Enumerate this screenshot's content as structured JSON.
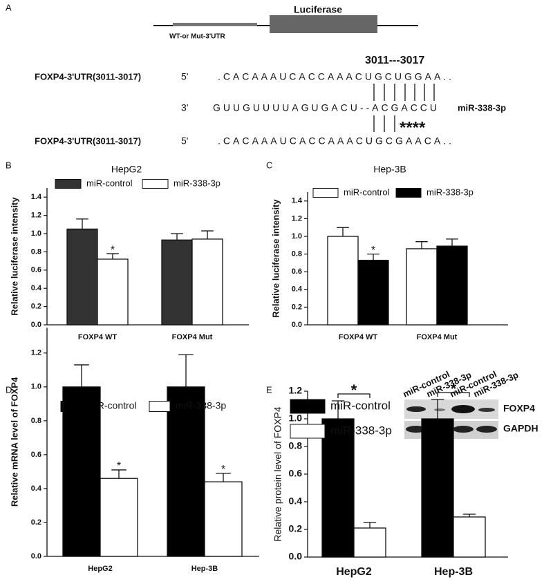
{
  "panel_a": {
    "label": "A",
    "luciferase": "Luciferase",
    "utr_label": "WT-or Mut-3'UTR",
    "site": "3011---3017",
    "rows": [
      {
        "name": "FOXP4-3'UTR(3011-3017)",
        "end": "5'",
        "sequence": ".CACAAAUCACCAAACUGCUGGAA.."
      },
      {
        "end": "3'",
        "sequence": "GUUGUUUUAGUGACU--ACGACCU",
        "name": "miR-338-3p"
      },
      {
        "name": "FOXP4-3'UTR(3011-3017)",
        "end": "5'",
        "sequence": ".CACAAAUCACCAAACUGCGAACA.."
      }
    ],
    "mismatch": "****"
  },
  "chart_data": [
    {
      "type": "bar",
      "panel": "B",
      "title": "HepG2",
      "ylabel": "Relative luciferase intensity",
      "categories": [
        "FOXP4 WT",
        "FOXP4 Mut"
      ],
      "series": [
        {
          "name": "miR-control",
          "color": "#333333",
          "values": [
            1.05,
            0.93
          ],
          "errors": [
            0.11,
            0.07
          ]
        },
        {
          "name": "miR-338-3p",
          "color": "#ffffff",
          "values": [
            0.72,
            0.94
          ],
          "errors": [
            0.06,
            0.09
          ],
          "annotations": [
            "*",
            null
          ]
        }
      ],
      "ylim": [
        0,
        1.5
      ],
      "yticks": [
        {
          "value": 0,
          "label": "0.0"
        },
        0.2,
        0.4,
        0.6,
        0.8,
        {
          "value": 1,
          "label": "1.0"
        },
        1.2,
        1.4
      ]
    },
    {
      "type": "bar",
      "panel": "C",
      "title": "Hep-3B",
      "ylabel": "Relative luciferase intensity",
      "categories": [
        "FOXP4 WT",
        "FOXP4 Mut"
      ],
      "series": [
        {
          "name": "miR-control",
          "color": "#ffffff",
          "values": [
            1.0,
            0.86
          ],
          "errors": [
            0.1,
            0.08
          ]
        },
        {
          "name": "miR-338-3p",
          "color": "#000000",
          "values": [
            0.73,
            0.89
          ],
          "errors": [
            0.07,
            0.08
          ],
          "annotations": [
            "*",
            null
          ]
        }
      ],
      "ylim": [
        0,
        1.5
      ],
      "yticks": [
        {
          "value": 0,
          "label": "0.0"
        },
        0.2,
        0.4,
        0.6,
        0.8,
        {
          "value": 1,
          "label": "1.0"
        },
        1.2,
        1.4
      ]
    },
    {
      "type": "bar",
      "panel": "D",
      "ylabel": "Relative mRNA level of FOXP4",
      "categories": [
        "HepG2",
        "Hep-3B"
      ],
      "series": [
        {
          "name": "miR-control",
          "color": "#000000",
          "values": [
            1.0,
            1.0
          ],
          "errors": [
            0.13,
            0.19
          ]
        },
        {
          "name": "miR-338-3p",
          "color": "#ffffff",
          "values": [
            0.46,
            0.44
          ],
          "errors": [
            0.05,
            0.05
          ],
          "annotations": [
            "*",
            "*"
          ]
        }
      ],
      "ylim": [
        0,
        1.35
      ],
      "yticks": [
        {
          "value": 0,
          "label": "0.0"
        },
        0.2,
        0.4,
        0.6,
        0.8,
        {
          "value": 1,
          "label": "1.0"
        },
        1.2
      ]
    },
    {
      "type": "bar",
      "panel": "E",
      "ylabel": "Relative protein level of FOXP4",
      "categories": [
        "HepG2",
        "Hep-3B"
      ],
      "series": [
        {
          "name": "miR-control",
          "color": "#000000",
          "values": [
            1.0,
            1.0
          ],
          "errors": [
            0.13,
            0.14
          ]
        },
        {
          "name": "miR-338-3p",
          "color": "#ffffff",
          "values": [
            0.21,
            0.29
          ],
          "errors": [
            0.04,
            0.02
          ],
          "annotations": [
            "*",
            "*"
          ]
        }
      ],
      "significance_bracket": true,
      "ylim": [
        0,
        1.2
      ],
      "yticks": [
        {
          "value": 0,
          "label": "0.0"
        },
        0.2,
        0.4,
        0.6,
        0.8,
        {
          "value": 1,
          "label": "1.0"
        },
        1.2
      ],
      "blot": {
        "lanes": [
          "miR-control",
          "miR-338-3p",
          "miR-control",
          "miR-338-3p"
        ],
        "bands": [
          "FOXP4",
          "GAPDH"
        ]
      }
    }
  ]
}
